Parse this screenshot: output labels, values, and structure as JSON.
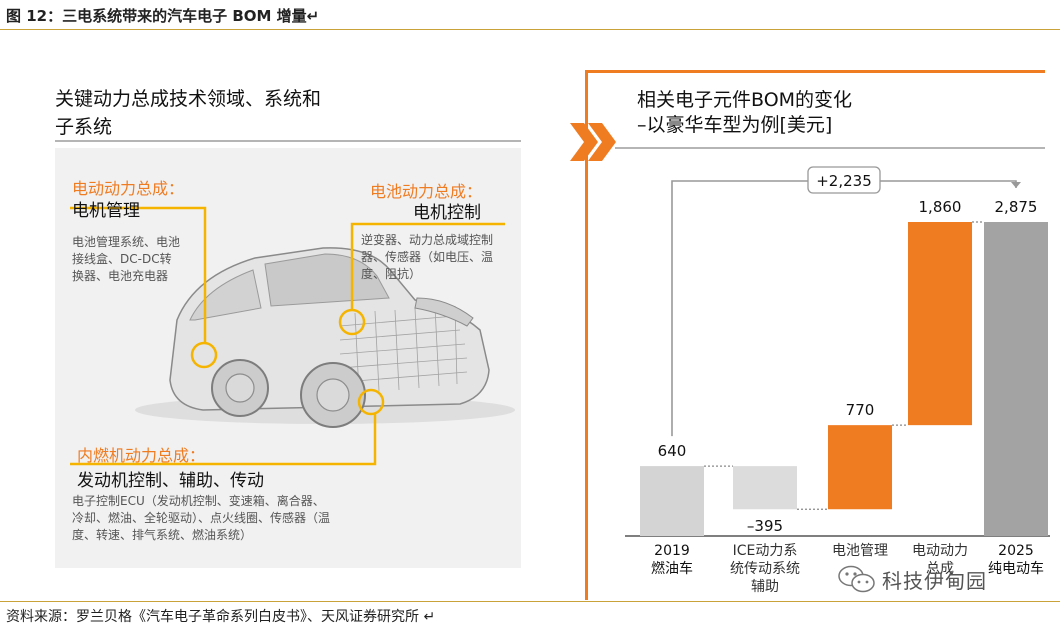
{
  "figure": {
    "title": "图 12：三电系统带来的汽车电子 BOM 增量↵",
    "source": "资料来源：罗兰贝格《汽车电子革命系列白皮书》、天风证券研究所 ↵"
  },
  "left": {
    "heading_line1": "关键动力总成技术领域、系统和",
    "heading_line2": "子系统",
    "callouts": {
      "electric": {
        "title": "电动动力总成：",
        "sub": "电机管理",
        "body_line1": "电池管理系统、电池",
        "body_line2": "接线盒、DC-DC转",
        "body_line3": "换器、电池充电器"
      },
      "battery": {
        "title": "电池动力总成：",
        "sub": "电机控制",
        "body_line1": "逆变器、动力总成域控制",
        "body_line2": "器、传感器（如电压、温",
        "body_line3": "度、阻抗）"
      },
      "ice": {
        "title": "内燃机动力总成：",
        "sub": "发动机控制、辅助、传动",
        "body_line1": "电子控制ECU（发动机控制、变速箱、离合器、",
        "body_line2": "冷却、燃油、全轮驱动）、点火线圈、传感器（温",
        "body_line3": "度、转速、排气系统、燃油系统）"
      }
    },
    "colors": {
      "accent": "#f5b400",
      "highlight_circle": "#f5b400"
    }
  },
  "right": {
    "heading_line1": "相关电子元件BOM的变化",
    "heading_line2": "–以豪华车型为例[美元]"
  },
  "chart_data": {
    "type": "bar",
    "subtype": "waterfall",
    "title": "相关电子元件BOM的变化 –以豪华车型为例[美元]",
    "categories": [
      [
        "2019",
        "燃油车"
      ],
      [
        "ICE动力系",
        "统传动系统",
        "辅助"
      ],
      [
        "电池管理"
      ],
      [
        "电动动力",
        "总成"
      ],
      [
        "2025",
        "纯电动车"
      ]
    ],
    "steps": [
      {
        "label": "640",
        "value": 640,
        "kind": "total",
        "base": 0
      },
      {
        "label": "–395",
        "value": -395,
        "kind": "delta",
        "base": 245
      },
      {
        "label": "770",
        "value": 770,
        "kind": "delta",
        "base": 245
      },
      {
        "label": "1,860",
        "value": 1860,
        "kind": "delta",
        "base": 1015
      },
      {
        "label": "2,875",
        "value": 2875,
        "kind": "total",
        "base": 0
      }
    ],
    "annotation": {
      "label": "+2,235",
      "from": 0,
      "to": 4
    },
    "ylim": [
      0,
      2875
    ],
    "colors": {
      "total_start": "#d4d4d4",
      "negative": "#dcdcdc",
      "positive": "#f07c22",
      "total_end": "#a3a3a3",
      "connector": "#888888",
      "annotation": "#999999"
    }
  },
  "watermark": {
    "text": "科技伊甸园",
    "icon": "wechat-icon"
  }
}
